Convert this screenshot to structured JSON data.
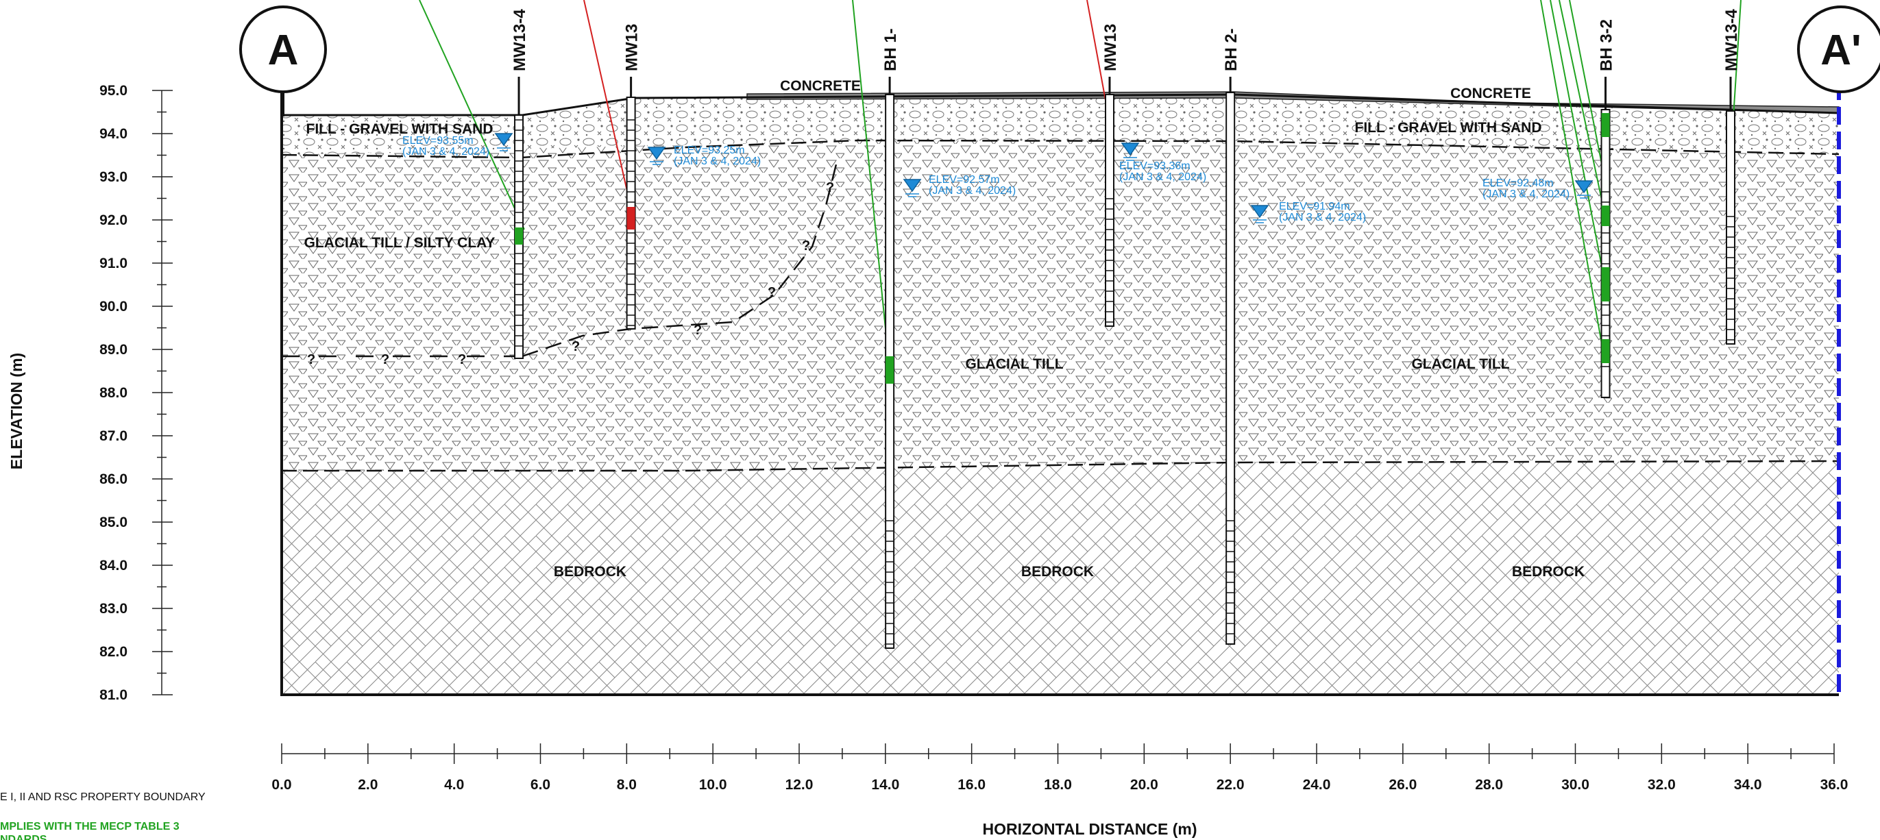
{
  "section": {
    "start_label": "A",
    "end_label": "A'",
    "y_axis_title": "ELEVATION (m)",
    "x_axis_title": "HORIZONTAL DISTANCE (m)",
    "y_ticks": [
      "95.0",
      "94.0",
      "93.0",
      "92.0",
      "91.0",
      "90.0",
      "89.0",
      "88.0",
      "87.0",
      "86.0",
      "85.0",
      "84.0",
      "83.0",
      "82.0",
      "81.0"
    ],
    "x_ticks": [
      "0.0",
      "2.0",
      "4.0",
      "6.0",
      "8.0",
      "10.0",
      "12.0",
      "14.0",
      "16.0",
      "18.0",
      "20.0",
      "22.0",
      "24.0",
      "26.0",
      "28.0",
      "30.0",
      "32.0",
      "34.0",
      "36.0"
    ],
    "y_range": [
      81.0,
      95.0
    ],
    "x_range": [
      0.0,
      36.0
    ]
  },
  "layers": {
    "concrete_1": "CONCRETE",
    "concrete_2": "CONCRETE",
    "fill_1": "FILL - GRAVEL WITH SAND",
    "fill_2": "FILL - GRAVEL WITH SAND",
    "till_clay": "GLACIAL TILL / SILTY CLAY",
    "till_1": "GLACIAL TILL",
    "till_2": "GLACIAL TILL",
    "bedrock_1": "BEDROCK",
    "bedrock_2": "BEDROCK",
    "bedrock_3": "BEDROCK",
    "unknown_marker": "?"
  },
  "boreholes": [
    {
      "label": "MW13-4",
      "x": 5.5
    },
    {
      "label": "MW13",
      "x": 8.1
    },
    {
      "label": "BH 1-",
      "x": 14.1
    },
    {
      "label": "MW13",
      "x": 19.2
    },
    {
      "label": "BH 2-",
      "x": 22.0
    },
    {
      "label": "BH 3-2",
      "x": 30.7
    },
    {
      "label": "MW13-4",
      "x": 33.6
    }
  ],
  "water_levels": [
    {
      "elev": "ELEV=93.55m",
      "date": "(JAN 3 & 4, 2024)"
    },
    {
      "elev": "ELEV=93.25m",
      "date": "(JAN 3 & 4, 2024)"
    },
    {
      "elev": "ELEV=92.57m",
      "date": "(JAN 3 & 4, 2024)"
    },
    {
      "elev": "ELEV=93.36m",
      "date": "(JAN 3 & 4, 2024)"
    },
    {
      "elev": "ELEV=91.94m",
      "date": "(JAN 3 & 4, 2024)"
    },
    {
      "elev": "ELEV=92.48m",
      "date": "(JAN 3 & 4, 2024)"
    }
  ],
  "legend": {
    "boundary_text": "E I, II AND RSC PROPERTY BOUNDARY",
    "complies_line1": "MPLIES WITH THE MECP TABLE 3",
    "complies_line2": "NDARDS"
  },
  "colors": {
    "water": "#1e8ad6",
    "complies_green": "#21a321",
    "exceeds_red": "#d42020",
    "boundary_blue": "#1a1adc"
  }
}
